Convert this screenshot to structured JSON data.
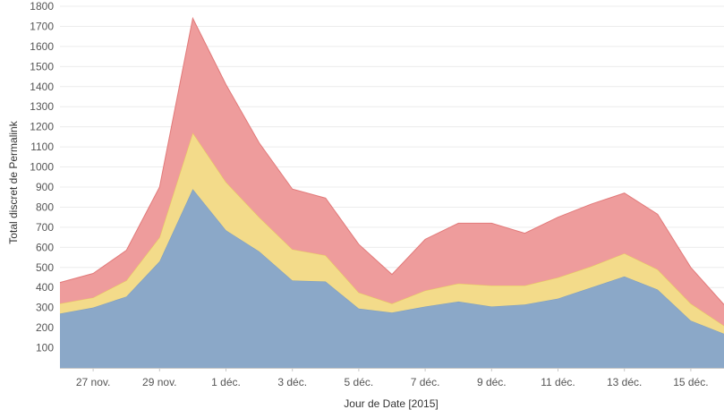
{
  "chart_data": {
    "type": "area",
    "stacked": true,
    "title": "",
    "xlabel": "Jour de Date [2015]",
    "ylabel": "Total discret de Permalink",
    "ylim": [
      0,
      1800
    ],
    "yticks": [
      100,
      200,
      300,
      400,
      500,
      600,
      700,
      800,
      900,
      1000,
      1100,
      1200,
      1300,
      1400,
      1500,
      1600,
      1700,
      1800
    ],
    "x": [
      "2015-11-26",
      "2015-11-27",
      "2015-11-28",
      "2015-11-29",
      "2015-11-30",
      "2015-12-01",
      "2015-12-02",
      "2015-12-03",
      "2015-12-04",
      "2015-12-05",
      "2015-12-06",
      "2015-12-07",
      "2015-12-08",
      "2015-12-09",
      "2015-12-10",
      "2015-12-11",
      "2015-12-12",
      "2015-12-13",
      "2015-12-14",
      "2015-12-15",
      "2015-12-16"
    ],
    "xtick_dates": [
      "2015-11-27",
      "2015-11-29",
      "2015-12-01",
      "2015-12-03",
      "2015-12-05",
      "2015-12-07",
      "2015-12-09",
      "2015-12-11",
      "2015-12-13",
      "2015-12-15"
    ],
    "xtick_labels": [
      "27 nov.",
      "29 nov.",
      "1 déc.",
      "3 déc.",
      "5 déc.",
      "7 déc.",
      "9 déc.",
      "11 déc.",
      "13 déc.",
      "15 déc."
    ],
    "grid": true,
    "legend": "none",
    "series": [
      {
        "color": "#8ba8c8",
        "stroke": "#7a9cc0",
        "values": [
          270,
          300,
          355,
          530,
          890,
          685,
          580,
          435,
          430,
          295,
          275,
          305,
          330,
          305,
          315,
          345,
          400,
          455,
          390,
          235,
          170
        ]
      },
      {
        "color": "#f3db8a",
        "stroke": "#e8c95c",
        "values": [
          50,
          50,
          80,
          120,
          280,
          240,
          170,
          155,
          130,
          80,
          45,
          80,
          90,
          105,
          95,
          105,
          105,
          115,
          100,
          85,
          40
        ]
      },
      {
        "color": "#ee9c9c",
        "stroke": "#e27a7a",
        "values": [
          105,
          120,
          150,
          250,
          570,
          485,
          370,
          300,
          285,
          240,
          145,
          255,
          300,
          310,
          260,
          300,
          310,
          300,
          275,
          180,
          105
        ]
      }
    ]
  }
}
